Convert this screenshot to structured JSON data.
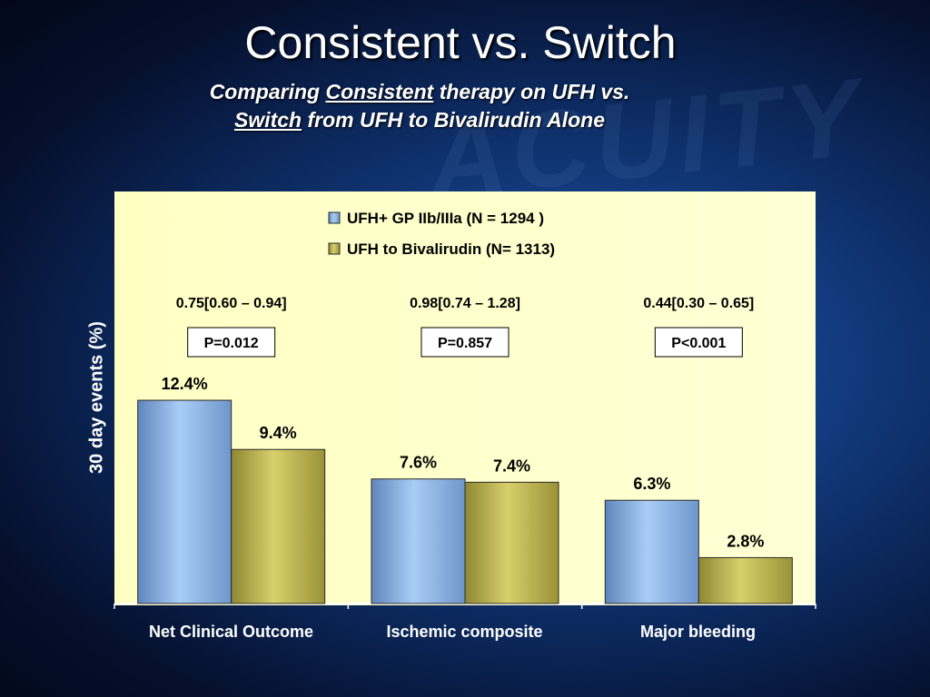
{
  "slide": {
    "title": "Consistent vs. Switch",
    "subtitle_parts": {
      "a": "Comparing ",
      "b": "Consistent",
      "c": " therapy on UFH vs.",
      "d": "Switch",
      "e": " from UFH to Bivalirudin Alone"
    }
  },
  "colors": {
    "series1": "#8fb6e6",
    "series1_dark": "#5f86bd",
    "series2": "#c8bf55",
    "series2_dark": "#8f8734",
    "plot_bg": "#ffffcc"
  },
  "chart_data": {
    "type": "bar",
    "ylabel": "30 day events (%)",
    "xlabel": "",
    "ylim": [
      0,
      14.5
    ],
    "categories": [
      "Net Clinical Outcome",
      "Ischemic composite",
      "Major bleeding"
    ],
    "series": [
      {
        "name": "UFH+ GP IIb/IIIa (N = 1294 )",
        "values": [
          12.4,
          7.6,
          6.3
        ],
        "labels": [
          "12.4%",
          "7.6%",
          "6.3%"
        ]
      },
      {
        "name": "UFH to Bivalirudin (N= 1313)",
        "values": [
          9.4,
          7.4,
          2.8
        ],
        "labels": [
          "9.4%",
          "7.4%",
          "2.8%"
        ]
      }
    ],
    "annotations": {
      "ratios": [
        "0.75[0.60 – 0.94]",
        "0.98[0.74 – 1.28]",
        "0.44[0.30 – 0.65]"
      ],
      "pvalues": [
        "P=0.012",
        "P=0.857",
        "P<0.001"
      ]
    },
    "legend_position": "top-center",
    "grid": false
  }
}
